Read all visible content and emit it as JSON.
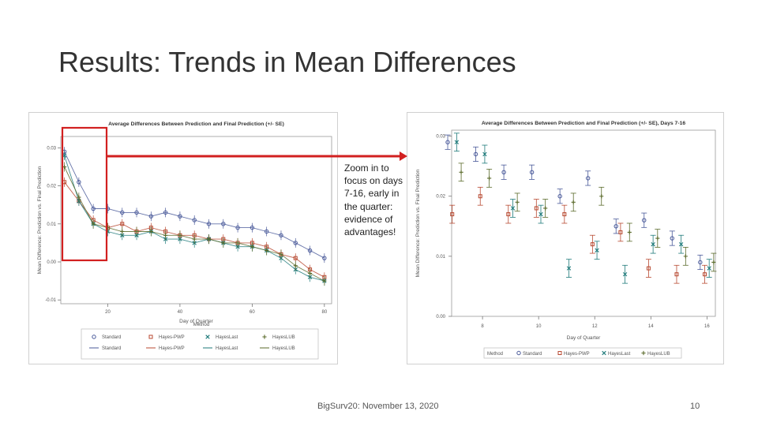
{
  "slide": {
    "title": "Results: Trends in Mean Differences",
    "annotation": "Zoom in to focus on days 7-16, early in the quarter: evidence of advantages!",
    "footer": "BigSurv20: November 13, 2020",
    "page_number": "10"
  },
  "colors": {
    "highlight": "#d22020",
    "standard": "#4a5a9a",
    "hayes_pwp": "#b84a32",
    "hayes_last": "#1e7a7a",
    "hayes_lub": "#5a6a2a"
  },
  "chart_data": [
    {
      "type": "scatter",
      "title": "Average Differences Between Prediction and Final Prediction (+/- SE)",
      "xlabel": "Day of Quarter",
      "ylabel": "Mean Difference: Prediction vs. Final Prediction",
      "x_ticks": [
        "20",
        "40",
        "60",
        "80"
      ],
      "y_ticks": [
        "0.03",
        "0.02",
        "0.01",
        "0.00",
        "-0.01"
      ],
      "xlim": [
        7,
        82
      ],
      "ylim": [
        -0.011,
        0.033
      ],
      "grid": false,
      "legend_title": "Method",
      "legend": [
        [
          "Standard",
          "Hayes-PWP",
          "HayesLast",
          "HayesLUB"
        ],
        [
          "Standard",
          "Hayes-PWP",
          "HayesLast",
          "HayesLUB"
        ]
      ],
      "series": [
        {
          "name": "Standard",
          "color": "#4a5a9a",
          "x": [
            8,
            12,
            16,
            20,
            24,
            28,
            32,
            36,
            40,
            44,
            48,
            52,
            56,
            60,
            64,
            68,
            72,
            76,
            80
          ],
          "y": [
            0.029,
            0.021,
            0.014,
            0.014,
            0.013,
            0.013,
            0.012,
            0.013,
            0.012,
            0.011,
            0.01,
            0.01,
            0.009,
            0.009,
            0.008,
            0.007,
            0.005,
            0.003,
            0.001
          ]
        },
        {
          "name": "Hayes-PWP",
          "color": "#b84a32",
          "x": [
            8,
            12,
            16,
            20,
            24,
            28,
            32,
            36,
            40,
            44,
            48,
            52,
            56,
            60,
            64,
            68,
            72,
            76,
            80
          ],
          "y": [
            0.021,
            0.016,
            0.011,
            0.009,
            0.01,
            0.008,
            0.009,
            0.008,
            0.007,
            0.007,
            0.006,
            0.006,
            0.005,
            0.005,
            0.004,
            0.002,
            0.001,
            -0.002,
            -0.004
          ]
        },
        {
          "name": "HayesLast",
          "color": "#1e7a7a",
          "x": [
            8,
            12,
            16,
            20,
            24,
            28,
            32,
            36,
            40,
            44,
            48,
            52,
            56,
            60,
            64,
            68,
            72,
            76,
            80
          ],
          "y": [
            0.028,
            0.016,
            0.01,
            0.008,
            0.007,
            0.007,
            0.008,
            0.006,
            0.006,
            0.005,
            0.006,
            0.005,
            0.004,
            0.004,
            0.003,
            0.001,
            -0.002,
            -0.004,
            -0.005
          ]
        },
        {
          "name": "HayesLUB",
          "color": "#5a6a2a",
          "x": [
            8,
            12,
            16,
            20,
            24,
            28,
            32,
            36,
            40,
            44,
            48,
            52,
            56,
            60,
            64,
            68,
            72,
            76,
            80
          ],
          "y": [
            0.025,
            0.017,
            0.01,
            0.009,
            0.008,
            0.008,
            0.008,
            0.007,
            0.007,
            0.006,
            0.006,
            0.005,
            0.005,
            0.004,
            0.003,
            0.002,
            -0.001,
            -0.003,
            -0.005
          ]
        }
      ]
    },
    {
      "type": "scatter",
      "title": "Average Differences Between Prediction and Final Prediction (+/- SE), Days 7-16",
      "xlabel": "Day of Quarter",
      "ylabel": "Mean Difference: Prediction vs. Final Prediction",
      "x_ticks": [
        "8",
        "10",
        "12",
        "14",
        "16"
      ],
      "y_ticks": [
        "0.03",
        "0.02",
        "0.01",
        "0.00"
      ],
      "xlim": [
        6.9,
        16.3
      ],
      "ylim": [
        0.0,
        0.031
      ],
      "grid": false,
      "legend": [
        "Method",
        "Standard",
        "Hayes-PWP",
        "HayesLast",
        "HayesLUB"
      ],
      "series": [
        {
          "name": "Standard",
          "color": "#4a5a9a",
          "x": [
            7,
            8,
            9,
            10,
            11,
            12,
            13,
            14,
            15,
            16
          ],
          "y": [
            0.029,
            0.027,
            0.024,
            0.024,
            0.02,
            0.023,
            0.015,
            0.016,
            0.013,
            0.009
          ],
          "se": [
            0.0012,
            0.0012,
            0.0012,
            0.0012,
            0.0012,
            0.0012,
            0.0012,
            0.0012,
            0.0012,
            0.0012
          ]
        },
        {
          "name": "Hayes-PWP",
          "color": "#b84a32",
          "x": [
            7,
            8,
            9,
            10,
            11,
            12,
            13,
            14,
            15,
            16
          ],
          "y": [
            0.017,
            0.02,
            0.017,
            0.018,
            0.017,
            0.012,
            0.014,
            0.008,
            0.007,
            0.007
          ],
          "se": [
            0.0015,
            0.0015,
            0.0015,
            0.0015,
            0.0015,
            0.0015,
            0.0015,
            0.0015,
            0.0015,
            0.0015
          ]
        },
        {
          "name": "HayesLast",
          "color": "#1e7a7a",
          "x": [
            7,
            8,
            9,
            10,
            11,
            12,
            13,
            14,
            15,
            16
          ],
          "y": [
            0.029,
            0.027,
            0.018,
            0.017,
            0.008,
            0.011,
            0.007,
            0.012,
            0.012,
            0.008
          ],
          "se": [
            0.0015,
            0.0015,
            0.0015,
            0.0015,
            0.0015,
            0.0015,
            0.0015,
            0.0015,
            0.0015,
            0.0015
          ]
        },
        {
          "name": "HayesLUB",
          "color": "#5a6a2a",
          "x": [
            7,
            8,
            9,
            10,
            11,
            12,
            13,
            14,
            15,
            16
          ],
          "y": [
            0.024,
            0.023,
            0.019,
            0.018,
            0.019,
            0.02,
            0.014,
            0.013,
            0.01,
            0.009
          ],
          "se": [
            0.0015,
            0.0015,
            0.0015,
            0.0015,
            0.0015,
            0.0015,
            0.0015,
            0.0015,
            0.0015,
            0.0015
          ]
        }
      ]
    }
  ]
}
